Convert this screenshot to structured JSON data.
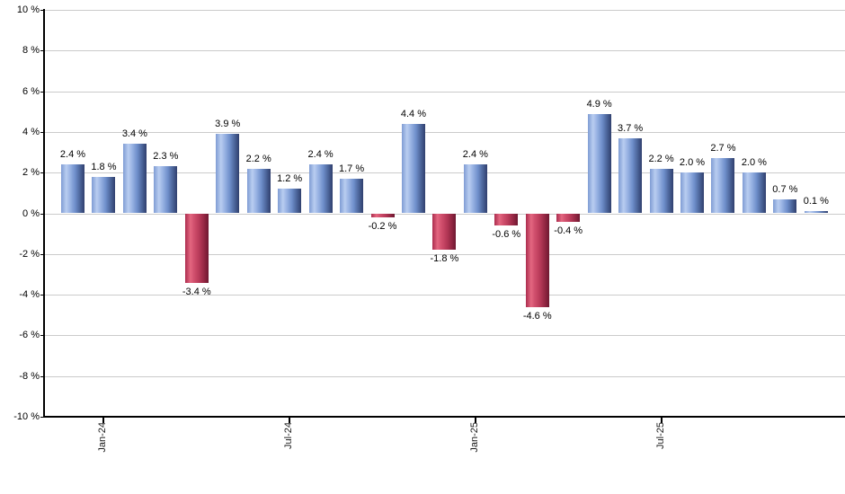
{
  "chart_data": {
    "type": "bar",
    "title": "",
    "ylabel": "",
    "xlabel": "",
    "unit": "%",
    "grid": true,
    "legend": "none",
    "y_axis": {
      "min": -10,
      "max": 10,
      "step": 2,
      "tick_labels": [
        "10 %",
        "8 %",
        "6 %",
        "4 %",
        "2 %",
        "0 %",
        "-2 %",
        "-4 %",
        "-6 %",
        "-8 %",
        "-10 %"
      ]
    },
    "x_axis": {
      "ticks": [
        {
          "label": "Jan-24",
          "bar_index": 1
        },
        {
          "label": "Jul-24",
          "bar_index": 7
        },
        {
          "label": "Jan-25",
          "bar_index": 13
        },
        {
          "label": "Jul-25",
          "bar_index": 19
        }
      ]
    },
    "values": [
      2.4,
      1.8,
      3.4,
      2.3,
      -3.4,
      3.9,
      2.2,
      1.2,
      2.4,
      1.7,
      -0.2,
      4.4,
      -1.8,
      2.4,
      -0.6,
      -4.6,
      -0.4,
      4.9,
      3.7,
      2.2,
      2.0,
      2.7,
      2.0,
      0.7,
      0.1
    ],
    "value_labels": [
      "2.4 %",
      "1.8 %",
      "3.4 %",
      "2.3 %",
      "-3.4 %",
      "3.9 %",
      "2.2 %",
      "1.2 %",
      "2.4 %",
      "1.7 %",
      "-0.2 %",
      "4.4 %",
      "-1.8 %",
      "2.4 %",
      "-0.6 %",
      "-4.6 %",
      "-0.4 %",
      "4.9 %",
      "3.7 %",
      "2.2 %",
      "2.0 %",
      "2.7 %",
      "2.0 %",
      "0.7 %",
      "0.1 %"
    ],
    "colors": {
      "positive_bar_light": "#b9cdf0",
      "positive_bar_dark": "#303f6d",
      "negative_bar_light": "#e36780",
      "negative_bar_dark": "#6e1831",
      "gridline": "#cbcbcb",
      "axis": "#000000",
      "label_text": "#000000",
      "background": "#ffffff"
    }
  }
}
